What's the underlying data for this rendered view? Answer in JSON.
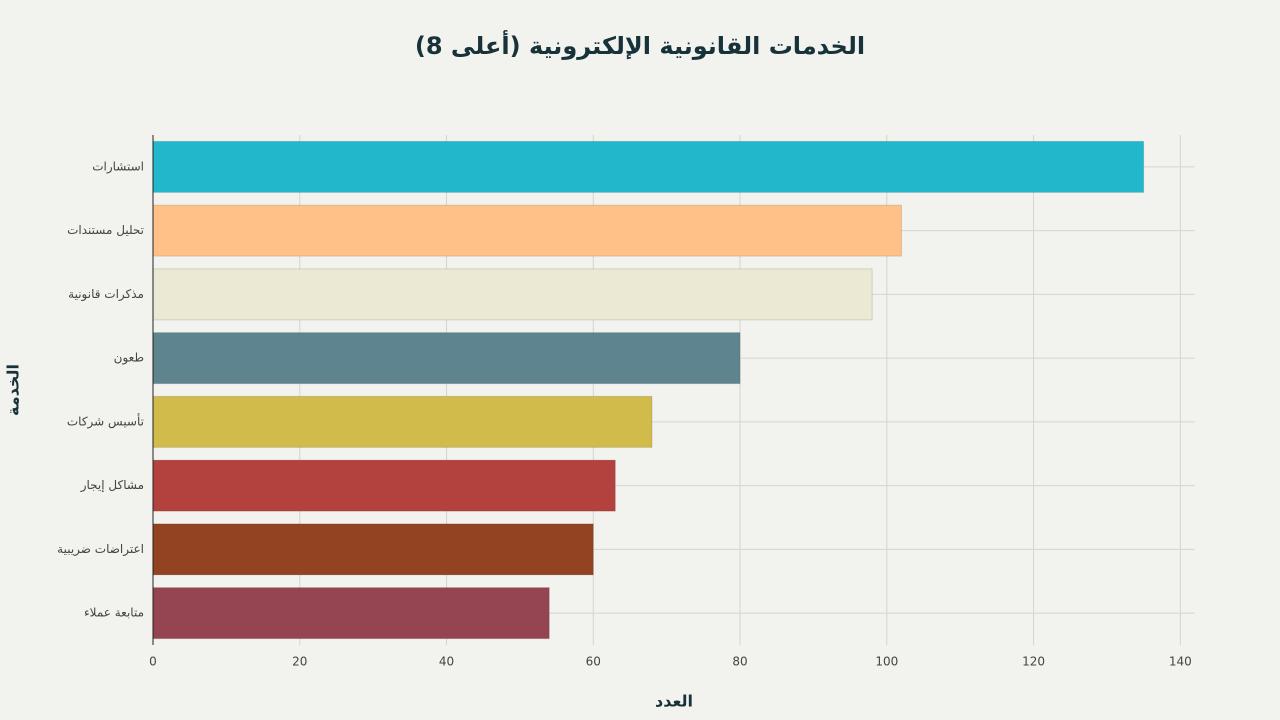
{
  "chart_data": {
    "type": "bar",
    "orientation": "horizontal",
    "title": "الخدمات القانونية الإلكترونية (أعلى 8)",
    "x_label": "العدد",
    "y_label": "الخدمة",
    "categories": [
      "استشارات",
      "تحليل مستندات",
      "مذكرات قانونية",
      "طعون",
      "تأسيس شركات",
      "مشاكل إيجار",
      "اعتراضات ضريبية",
      "متابعة عملاء"
    ],
    "values": [
      135,
      102,
      98,
      80,
      68,
      63,
      60,
      54
    ],
    "colors": [
      "#22b8cc",
      "#ffc187",
      "#ebe9d4",
      "#5e858f",
      "#d1bb4a",
      "#b3423f",
      "#944322",
      "#944551"
    ],
    "xlim": [
      0,
      142
    ],
    "xticks": [
      0,
      20,
      40,
      60,
      80,
      100,
      120,
      140
    ],
    "grid": true
  }
}
